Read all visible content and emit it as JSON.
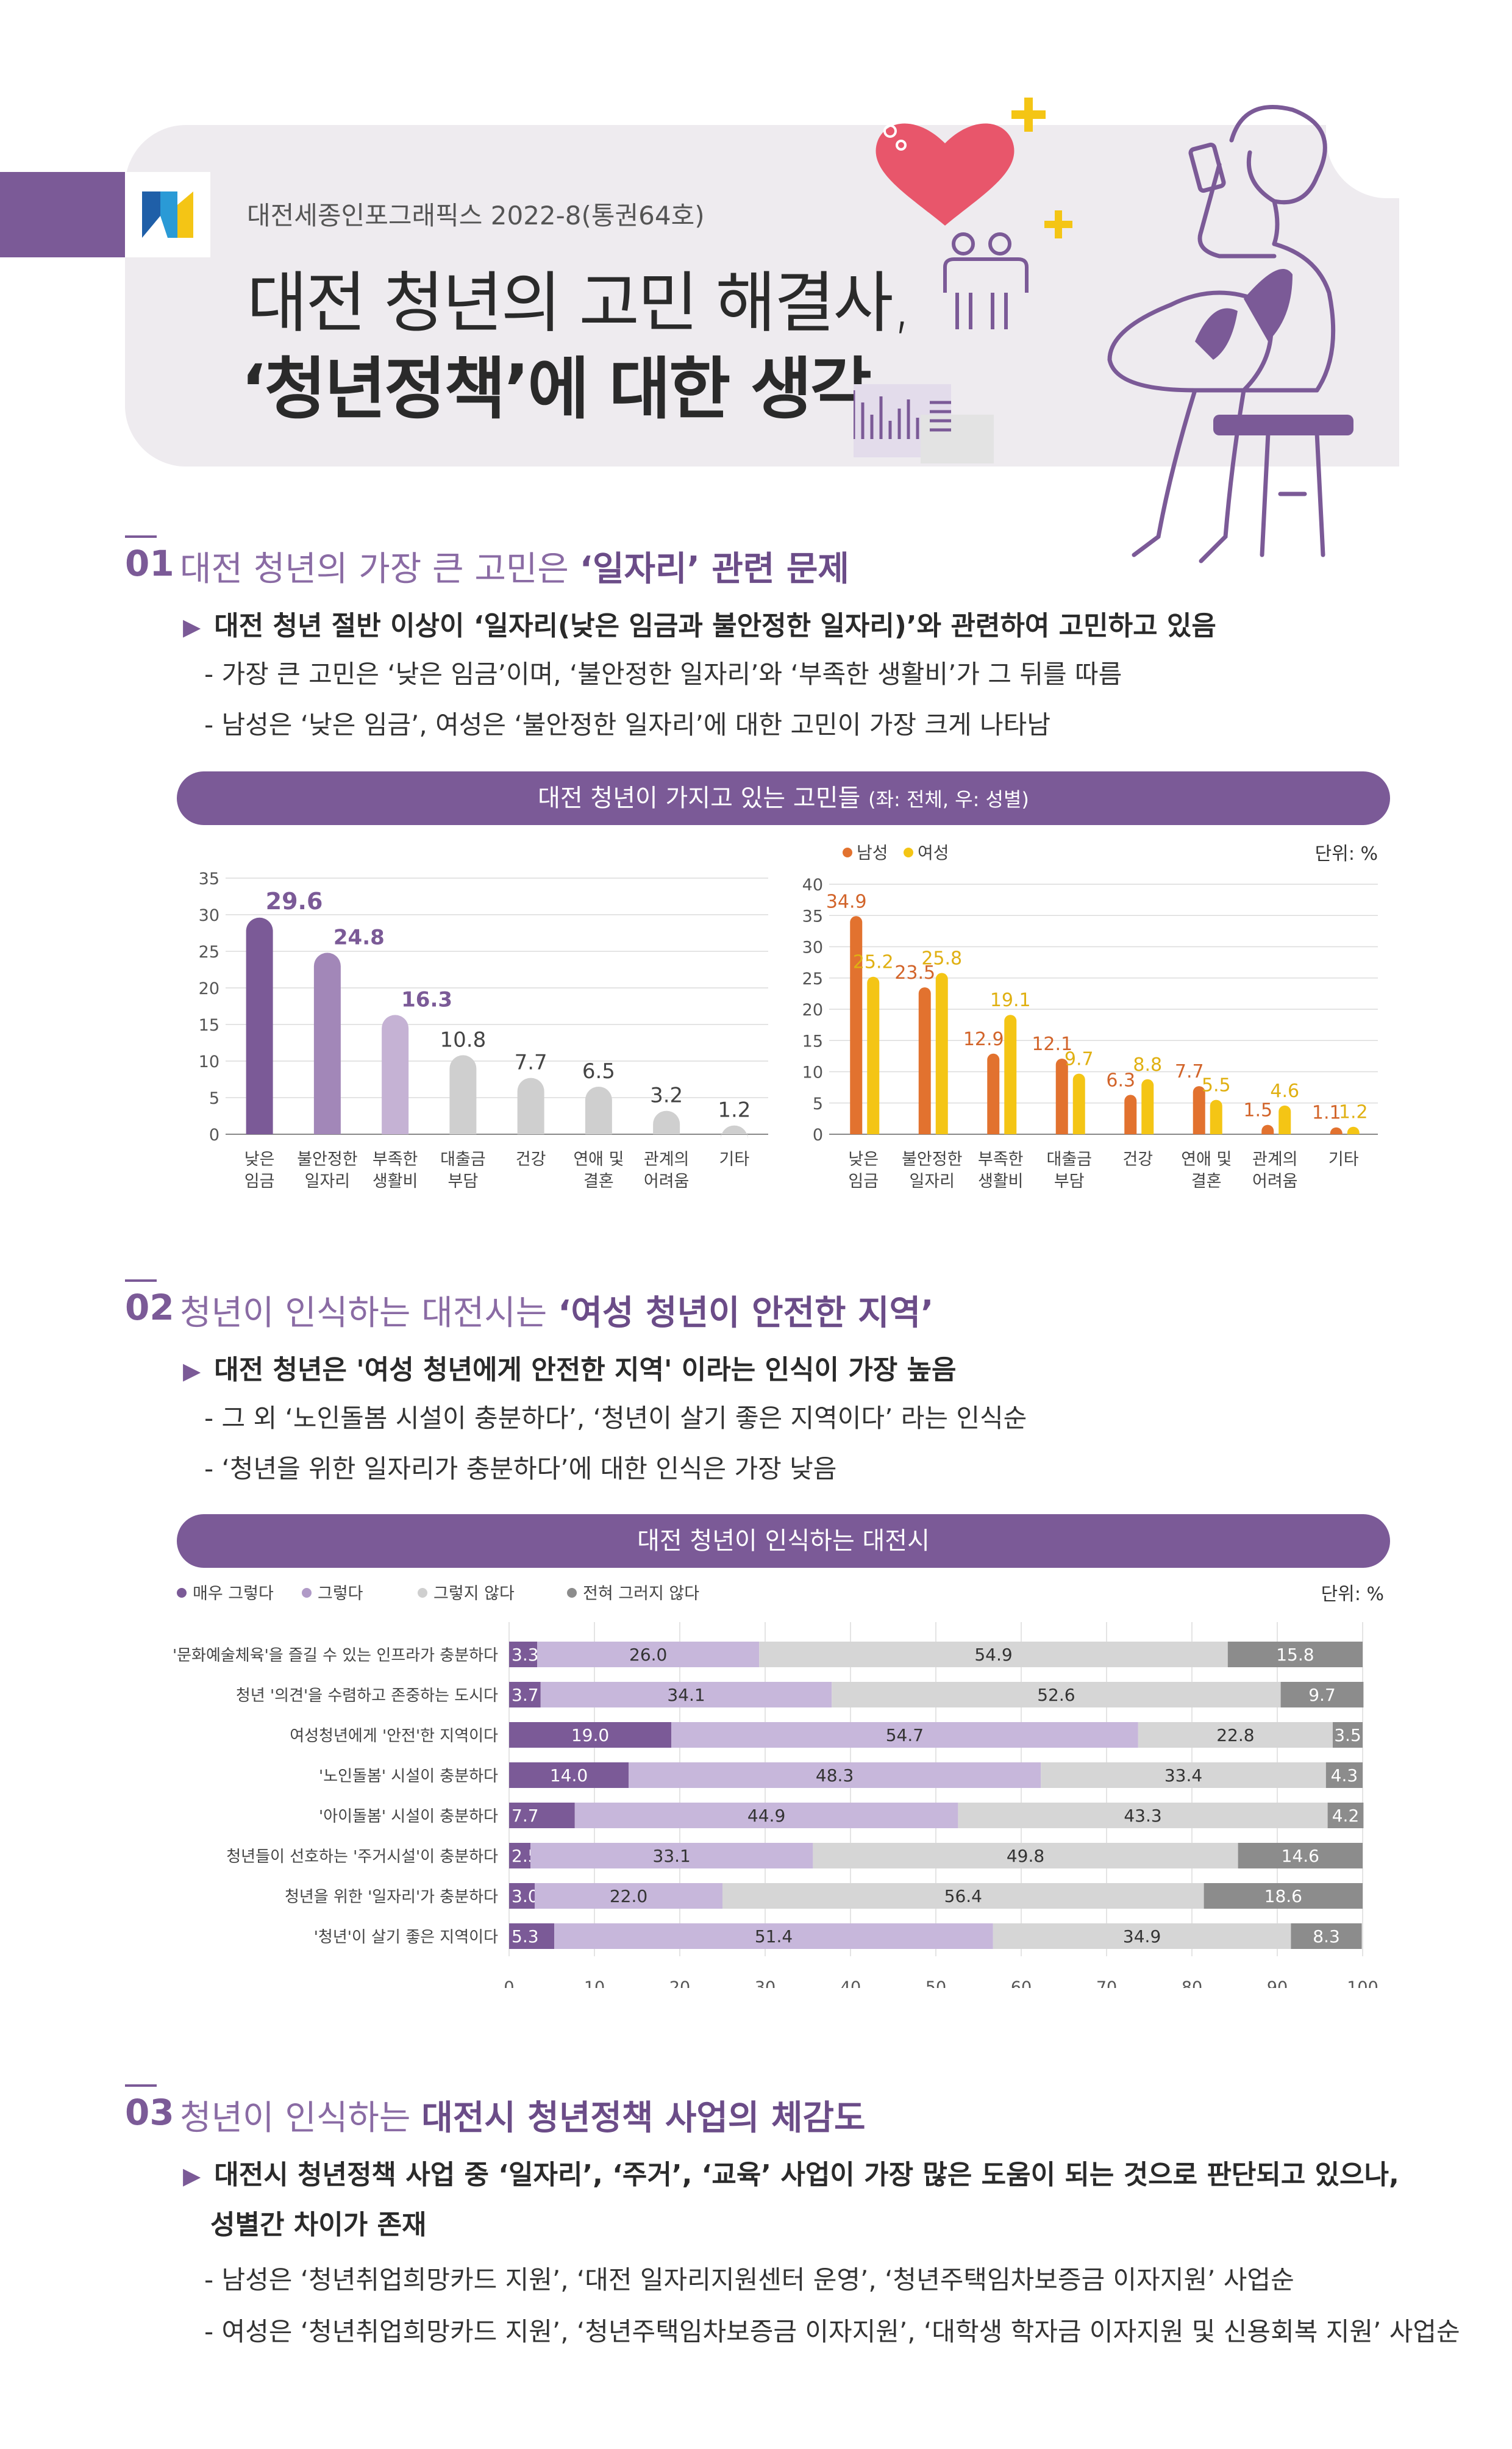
{
  "header": {
    "publisher": "대전세종인포그래픽스 2022-8(통권64호)",
    "title_line1": "대전 청년의 고민 해결사,",
    "title_line2": "‘청년정책’에 대한 생각"
  },
  "section1": {
    "num": "01",
    "title_plain": "대전 청년의 가장 큰 고민은 ",
    "title_bold": "‘일자리’ 관련 문제",
    "bullet": "대전 청년 절반 이상이 ‘일자리(낮은 임금과 불안정한 일자리)’와 관련하여 고민하고 있음",
    "subs": [
      "- 가장 큰 고민은 ‘낮은 임금’이며, ‘불안정한 일자리’와 ‘부족한 생활비’가 그 뒤를 따름",
      "- 남성은 ‘낮은 임금’, 여성은 ‘불안정한 일자리’에 대한 고민이 가장 크게 나타남"
    ],
    "banner_main": "대전 청년이 가지고 있는 고민들 ",
    "banner_small": "(좌: 전체, 우: 성별)"
  },
  "section2": {
    "num": "02",
    "title_plain": "청년이 인식하는 대전시는 ",
    "title_bold": "‘여성 청년이 안전한 지역’",
    "bullet": "대전 청년은 '여성 청년에게 안전한 지역' 이라는 인식이 가장 높음",
    "subs": [
      "- 그 외 ‘노인돌봄 시설이 충분하다’, ‘청년이 살기 좋은 지역이다’ 라는 인식순",
      "- ‘청년을 위한 일자리가 충분하다’에 대한 인식은 가장 낮음"
    ],
    "banner_main": "대전 청년이 인식하는 대전시"
  },
  "section3": {
    "num": "03",
    "title_plain": "청년이 인식하는 ",
    "title_bold": "대전시 청년정책 사업의 체감도",
    "bullet_line1": "대전시 청년정책 사업 중 ‘일자리’, ‘주거’, ‘교육’ 사업이 가장 많은 도움이 되는 것으로 판단되고 있으나,",
    "bullet_line2": "성별간 차이가 존재",
    "subs": [
      "- 남성은 ‘청년취업희망카드 지원’, ‘대전 일자리지원센터 운영’, ‘청년주택임차보증금 이자지원’ 사업순",
      "- 여성은 ‘청년취업희망카드 지원’, ‘청년주택임차보증금 이자지원’, ‘대학생 학자금 이자지원 및 신용회복 지원’ 사업순"
    ]
  },
  "colors": {
    "purple": "#7b5a97",
    "male": "#e2722f",
    "female": "#f4c515",
    "gray_dark": "#8c8c8c",
    "gray_light": "#d4d4d4"
  },
  "chart_data": [
    {
      "type": "bar",
      "categories": [
        "낮은\n임금",
        "불안정한\n일자리",
        "부족한\n생활비",
        "대출금\n부담",
        "건강",
        "연애 및\n결혼",
        "관계의\n어려움",
        "기타"
      ],
      "values": [
        29.6,
        24.8,
        16.3,
        10.8,
        7.7,
        6.5,
        3.2,
        1.2
      ],
      "ylim": [
        0,
        35
      ],
      "yticks": [
        0,
        5,
        10,
        15,
        20,
        25,
        30,
        35
      ],
      "grid": true
    },
    {
      "type": "bar",
      "categories": [
        "낮은\n임금",
        "불안정한\n일자리",
        "부족한\n생활비",
        "대출금\n부담",
        "건강",
        "연애 및\n결혼",
        "관계의\n어려움",
        "기타"
      ],
      "series": [
        {
          "name": "남성",
          "values": [
            34.9,
            23.5,
            12.9,
            12.1,
            6.3,
            7.7,
            1.5,
            1.1
          ]
        },
        {
          "name": "여성",
          "values": [
            25.2,
            25.8,
            19.1,
            9.7,
            8.8,
            5.5,
            4.6,
            1.2
          ]
        }
      ],
      "unit": "단위: %",
      "ylim": [
        0,
        40
      ],
      "yticks": [
        0,
        5,
        10,
        15,
        20,
        25,
        30,
        35,
        40
      ],
      "legend": "top-left",
      "grid": true
    },
    {
      "type": "bar",
      "orientation": "horizontal",
      "stacked": true,
      "unit": "단위: %",
      "categories": [
        "'문화예술체육'을 즐길 수 있는 인프라가 충분하다",
        "청년 '의견'을 수렴하고 존중하는 도시다",
        "여성청년에게 '안전'한 지역이다",
        "'노인돌봄' 시설이 충분하다",
        "'아이돌봄' 시설이 충분하다",
        "청년들이 선호하는 '주거시설'이 충분하다",
        "청년을 위한 '일자리'가 충분하다",
        "'청년'이 살기 좋은 지역이다"
      ],
      "series": [
        {
          "name": "매우 그렇다",
          "values": [
            3.3,
            3.7,
            19.0,
            14.0,
            7.7,
            2.5,
            3.0,
            5.3
          ]
        },
        {
          "name": "그렇다",
          "values": [
            26.0,
            34.1,
            54.7,
            48.3,
            44.9,
            33.1,
            22.0,
            51.4
          ]
        },
        {
          "name": "그렇지 않다",
          "values": [
            54.9,
            52.6,
            22.8,
            33.4,
            43.3,
            49.8,
            56.4,
            34.9
          ]
        },
        {
          "name": "전혀 그러지 않다",
          "values": [
            15.8,
            9.7,
            3.5,
            4.3,
            4.2,
            14.6,
            18.6,
            8.3
          ]
        }
      ],
      "xlim": [
        0,
        100
      ],
      "xticks": [
        0,
        10,
        20,
        30,
        40,
        50,
        60,
        70,
        80,
        90,
        100
      ],
      "legend": "top-left",
      "grid": true
    }
  ]
}
